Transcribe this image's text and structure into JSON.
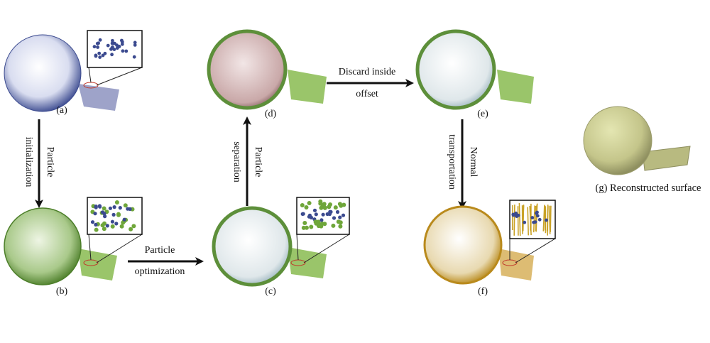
{
  "panels": {
    "a": {
      "label": "(a)"
    },
    "b": {
      "label": "(b)"
    },
    "c": {
      "label": "(c)"
    },
    "d": {
      "label": "(d)"
    },
    "e": {
      "label": "(e)"
    },
    "f": {
      "label": "(f)"
    },
    "g": {
      "label": "(g) Reconstructed surface"
    }
  },
  "arrows": {
    "a_to_b": {
      "line1": "Particle",
      "line2": "initialization"
    },
    "b_to_c": {
      "line1": "Particle",
      "line2": "optimization"
    },
    "c_to_d": {
      "line1": "Particle",
      "line2": "separation"
    },
    "d_to_e": {
      "line1": "Discard inside",
      "line2": "offset"
    },
    "e_to_f": {
      "line1": "Normal",
      "line2": "transportation"
    }
  },
  "colors": {
    "blue_points": "#3b4a8f",
    "green_points": "#6fa63a",
    "orange_points": "#c9a227",
    "surface": "#c6c98a",
    "arrow": "#111111"
  }
}
